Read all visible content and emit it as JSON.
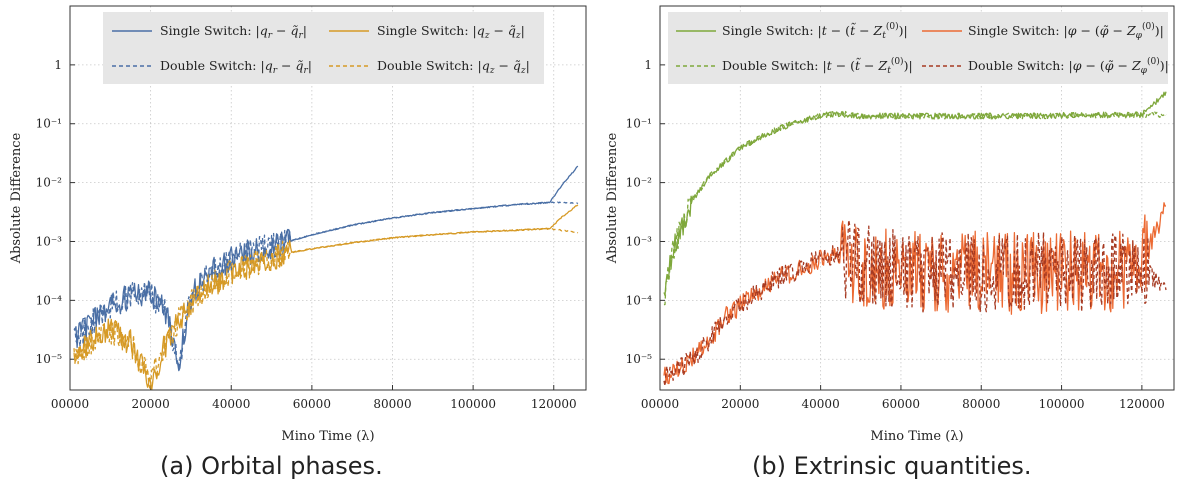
{
  "colors": {
    "blue": "#4a6fa5",
    "gold": "#d69a26",
    "green": "#7fa83c",
    "orange": "#ec6a33",
    "dark_red": "#a63a22",
    "grid": "#c8c8c8",
    "legend_bg": "#e6e6e6"
  },
  "captions": {
    "a": "(a) Orbital phases.",
    "b": "(b) Extrinsic quantities."
  },
  "chart_data": [
    {
      "type": "line",
      "xlabel": "Mino Time (λ)",
      "ylabel": "Absolute Difference",
      "yscale": "log",
      "xlim": [
        0,
        128000
      ],
      "ylim": [
        3e-06,
        10
      ],
      "grid": true,
      "legend_position": "top",
      "xticks": [
        "00000",
        "20000",
        "40000",
        "60000",
        "80000",
        "100000",
        "120000"
      ],
      "yticks": [
        "10⁻⁵",
        "10⁻⁴",
        "10⁻³",
        "10⁻²",
        "10⁻¹",
        "1"
      ],
      "series": [
        {
          "name": "Single Switch: |q_r − q̃_r|",
          "color": "blue",
          "style": "solid",
          "x": [
            1000,
            5000,
            10000,
            15000,
            20000,
            24000,
            27000,
            30000,
            35000,
            40000,
            45000,
            50000,
            52000,
            60000,
            70000,
            80000,
            90000,
            100000,
            110000,
            119000,
            122000,
            126000
          ],
          "y": [
            2e-05,
            4e-05,
            8e-05,
            0.00012,
            0.00013,
            6e-05,
            8e-06,
            0.00012,
            0.0003,
            0.0005,
            0.0007,
            0.0008,
            0.0009,
            0.0013,
            0.0019,
            0.0025,
            0.0031,
            0.0036,
            0.0042,
            0.0046,
            0.009,
            0.019
          ]
        },
        {
          "name": "Single Switch: |q_z − q̃_z|",
          "color": "gold",
          "style": "solid",
          "x": [
            1000,
            5000,
            10000,
            15000,
            20000,
            24000,
            28000,
            32000,
            40000,
            45000,
            50000,
            52000,
            60000,
            70000,
            80000,
            90000,
            100000,
            110000,
            119000,
            122000,
            126000
          ],
          "y": [
            1e-05,
            2e-05,
            3e-05,
            2e-05,
            4e-06,
            2e-05,
            6e-05,
            0.00013,
            0.0003,
            0.0004,
            0.0005,
            0.0006,
            0.00075,
            0.00095,
            0.00115,
            0.0013,
            0.00145,
            0.00155,
            0.00165,
            0.0026,
            0.0042
          ]
        },
        {
          "name": "Double Switch: |q_r − q̃_r|",
          "color": "blue",
          "style": "dashed",
          "x": [
            1000,
            5000,
            10000,
            15000,
            20000,
            24000,
            27000,
            30000,
            35000,
            40000,
            45000,
            50000,
            52000,
            60000,
            70000,
            80000,
            90000,
            100000,
            110000,
            119000,
            122000,
            126000
          ],
          "y": [
            2e-05,
            4e-05,
            8e-05,
            0.00012,
            0.00013,
            6e-05,
            8e-06,
            0.00012,
            0.0003,
            0.0005,
            0.0007,
            0.0008,
            0.0009,
            0.0013,
            0.0019,
            0.0025,
            0.0031,
            0.0036,
            0.0042,
            0.0046,
            0.0046,
            0.0044
          ]
        },
        {
          "name": "Double Switch: |q_z − q̃_z|",
          "color": "gold",
          "style": "dashed",
          "x": [
            1000,
            5000,
            10000,
            15000,
            20000,
            24000,
            28000,
            32000,
            40000,
            45000,
            50000,
            52000,
            60000,
            70000,
            80000,
            90000,
            100000,
            110000,
            119000,
            122000,
            126000
          ],
          "y": [
            1e-05,
            2e-05,
            3e-05,
            2e-05,
            4e-06,
            2e-05,
            6e-05,
            0.00013,
            0.0003,
            0.0004,
            0.0005,
            0.0006,
            0.00075,
            0.00095,
            0.00115,
            0.0013,
            0.00145,
            0.00155,
            0.00165,
            0.00155,
            0.0014
          ]
        }
      ]
    },
    {
      "type": "line",
      "xlabel": "Mino Time (λ)",
      "ylabel": "Absolute Difference",
      "yscale": "log",
      "xlim": [
        0,
        128000
      ],
      "ylim": [
        3e-06,
        10
      ],
      "grid": true,
      "legend_position": "top",
      "xticks": [
        "00000",
        "20000",
        "40000",
        "60000",
        "80000",
        "100000",
        "120000"
      ],
      "yticks": [
        "10⁻⁵",
        "10⁻⁴",
        "10⁻³",
        "10⁻²",
        "10⁻¹",
        "1"
      ],
      "series": [
        {
          "name": "Single Switch: |t − (t̃ − Z_t^(0))|",
          "color": "green",
          "style": "solid",
          "x": [
            1000,
            3000,
            5000,
            8000,
            12000,
            16000,
            20000,
            25000,
            30000,
            35000,
            40000,
            44000,
            50000,
            60000,
            70000,
            80000,
            90000,
            100000,
            110000,
            120000,
            123000,
            126000
          ],
          "y": [
            0.0001,
            0.0006,
            0.0015,
            0.005,
            0.012,
            0.022,
            0.038,
            0.06,
            0.085,
            0.11,
            0.135,
            0.15,
            0.135,
            0.135,
            0.135,
            0.135,
            0.135,
            0.138,
            0.14,
            0.142,
            0.22,
            0.35
          ]
        },
        {
          "name": "Single Switch: |φ − (φ̃ − Z_φ^(0))|",
          "color": "orange",
          "style": "solid",
          "x": [
            1000,
            3000,
            6000,
            9000,
            12000,
            16000,
            20000,
            25000,
            30000,
            35000,
            40000,
            44000,
            50000,
            60000,
            70000,
            80000,
            90000,
            100000,
            110000,
            118000,
            121000,
            123000,
            126000
          ],
          "y": [
            5e-06,
            6e-06,
            8e-06,
            1.2e-05,
            2e-05,
            5e-05,
            8e-05,
            0.00015,
            0.00025,
            0.00035,
            0.0005,
            0.0006,
            0.0004,
            0.0003,
            0.0003,
            0.0003,
            0.00028,
            0.0003,
            0.0003,
            0.0003,
            0.0006,
            0.0012,
            0.004
          ]
        },
        {
          "name": "Double Switch: |t − (t̃ − Z_t^(0))|",
          "color": "green",
          "style": "dashed",
          "x": [
            1000,
            3000,
            5000,
            8000,
            12000,
            16000,
            20000,
            25000,
            30000,
            35000,
            40000,
            44000,
            50000,
            60000,
            70000,
            80000,
            90000,
            100000,
            110000,
            120000,
            123000,
            126000
          ],
          "y": [
            0.0001,
            0.0006,
            0.0015,
            0.005,
            0.012,
            0.022,
            0.038,
            0.06,
            0.085,
            0.11,
            0.135,
            0.15,
            0.135,
            0.135,
            0.135,
            0.135,
            0.135,
            0.138,
            0.14,
            0.142,
            0.145,
            0.14
          ]
        },
        {
          "name": "Double Switch: |φ − (φ̃ − Z_φ^(0))|",
          "color": "dark_red",
          "style": "dashed",
          "x": [
            1000,
            3000,
            6000,
            9000,
            12000,
            16000,
            20000,
            25000,
            30000,
            35000,
            40000,
            44000,
            50000,
            60000,
            70000,
            80000,
            90000,
            100000,
            110000,
            118000,
            121000,
            123000,
            126000
          ],
          "y": [
            5e-06,
            6e-06,
            8e-06,
            1.2e-05,
            2e-05,
            5e-05,
            8e-05,
            0.00015,
            0.00025,
            0.00035,
            0.0005,
            0.0006,
            0.0004,
            0.0003,
            0.0003,
            0.0003,
            0.00028,
            0.0003,
            0.0003,
            0.0003,
            0.0003,
            0.00025,
            0.00015
          ]
        }
      ]
    }
  ]
}
